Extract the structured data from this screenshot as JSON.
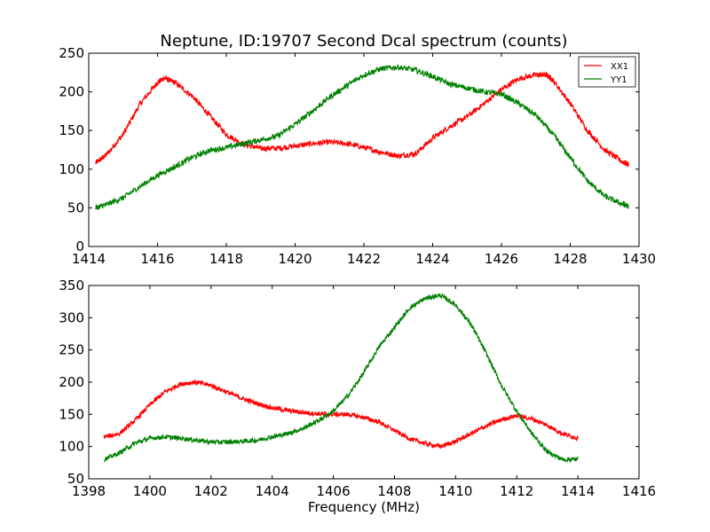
{
  "title": "Neptune, ID:19707 Second Dcal spectrum (counts)",
  "chart_data": [
    {
      "type": "line",
      "title": "Neptune, ID:19707 Second Dcal spectrum (counts)",
      "xlabel": "",
      "ylabel": "",
      "xlim": [
        1414,
        1430
      ],
      "ylim": [
        0,
        250
      ],
      "xticks": [
        1414,
        1416,
        1418,
        1420,
        1422,
        1424,
        1426,
        1428,
        1430
      ],
      "yticks": [
        0,
        50,
        100,
        150,
        200,
        250
      ],
      "grid": false,
      "legend": {
        "placement": "top-right",
        "entries": [
          "XX1",
          "YY1"
        ]
      },
      "series": [
        {
          "name": "XX1",
          "color": "#ff0000",
          "x": [
            1414.2,
            1414.5,
            1415.0,
            1415.5,
            1416.0,
            1416.2,
            1416.5,
            1417.0,
            1417.5,
            1418.0,
            1418.5,
            1419.0,
            1419.5,
            1420.0,
            1420.5,
            1421.0,
            1421.5,
            1422.0,
            1422.5,
            1423.0,
            1423.5,
            1424.0,
            1424.5,
            1425.0,
            1425.5,
            1426.0,
            1426.5,
            1427.0,
            1427.3,
            1427.5,
            1428.0,
            1428.5,
            1429.0,
            1429.5,
            1429.7
          ],
          "y": [
            108,
            118,
            145,
            185,
            212,
            218,
            212,
            195,
            170,
            145,
            132,
            127,
            127,
            130,
            133,
            135,
            133,
            128,
            122,
            117,
            120,
            140,
            155,
            168,
            185,
            203,
            217,
            222,
            222,
            215,
            185,
            150,
            125,
            110,
            106
          ]
        },
        {
          "name": "YY1",
          "color": "#008000",
          "x": [
            1414.2,
            1414.5,
            1415.0,
            1415.5,
            1416.0,
            1416.5,
            1417.0,
            1417.5,
            1418.0,
            1418.5,
            1419.0,
            1419.5,
            1420.0,
            1420.5,
            1421.0,
            1421.5,
            1422.0,
            1422.5,
            1423.0,
            1423.5,
            1424.0,
            1424.5,
            1425.0,
            1425.5,
            1426.0,
            1426.5,
            1427.0,
            1427.5,
            1428.0,
            1428.5,
            1429.0,
            1429.5,
            1429.7
          ],
          "y": [
            50,
            54,
            63,
            78,
            92,
            103,
            115,
            124,
            128,
            133,
            138,
            143,
            158,
            175,
            193,
            208,
            222,
            230,
            232,
            228,
            220,
            210,
            205,
            200,
            197,
            185,
            170,
            145,
            115,
            85,
            65,
            55,
            52
          ]
        }
      ]
    },
    {
      "type": "line",
      "title": "",
      "xlabel": "Frequency (MHz)",
      "ylabel": "",
      "xlim": [
        1398,
        1416
      ],
      "ylim": [
        50,
        350
      ],
      "xticks": [
        1398,
        1400,
        1402,
        1404,
        1406,
        1408,
        1410,
        1412,
        1414,
        1416
      ],
      "yticks": [
        50,
        100,
        150,
        200,
        250,
        300,
        350
      ],
      "grid": false,
      "series": [
        {
          "name": "XX1",
          "color": "#ff0000",
          "x": [
            1398.5,
            1399.0,
            1399.5,
            1400.0,
            1400.5,
            1401.0,
            1401.5,
            1402.0,
            1402.5,
            1403.0,
            1403.5,
            1404.0,
            1404.5,
            1405.0,
            1405.5,
            1406.0,
            1406.5,
            1407.0,
            1407.5,
            1408.0,
            1408.5,
            1409.0,
            1409.5,
            1410.0,
            1410.5,
            1411.0,
            1411.5,
            1412.0,
            1412.5,
            1413.0,
            1413.5,
            1414.0
          ],
          "y": [
            115,
            120,
            140,
            165,
            185,
            197,
            200,
            195,
            185,
            175,
            167,
            160,
            156,
            153,
            151,
            150,
            150,
            145,
            138,
            125,
            112,
            105,
            100,
            108,
            120,
            132,
            142,
            148,
            143,
            133,
            120,
            113
          ]
        },
        {
          "name": "YY1",
          "color": "#008000",
          "x": [
            1398.5,
            1399.0,
            1399.5,
            1400.0,
            1400.5,
            1401.0,
            1401.5,
            1402.0,
            1402.5,
            1403.0,
            1403.5,
            1404.0,
            1404.5,
            1405.0,
            1405.5,
            1406.0,
            1406.5,
            1407.0,
            1407.5,
            1408.0,
            1408.5,
            1409.0,
            1409.5,
            1410.0,
            1410.5,
            1411.0,
            1411.5,
            1412.0,
            1412.5,
            1413.0,
            1413.5,
            1414.0
          ],
          "y": [
            80,
            90,
            105,
            113,
            115,
            113,
            110,
            107,
            107,
            108,
            110,
            115,
            120,
            128,
            140,
            155,
            180,
            215,
            255,
            285,
            315,
            330,
            335,
            320,
            290,
            245,
            195,
            155,
            120,
            92,
            80,
            80
          ]
        }
      ]
    }
  ]
}
